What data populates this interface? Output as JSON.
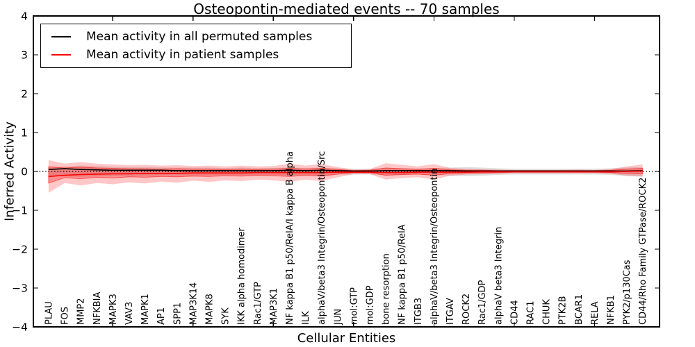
{
  "chart_data": {
    "type": "line",
    "title": "Osteopontin-mediated events -- 70 samples",
    "xlabel": "Cellular Entities",
    "ylabel": "Inferred Activity",
    "ylim": [
      -4,
      4
    ],
    "yticks": [
      -4,
      -3,
      -2,
      -1,
      0,
      1,
      2,
      3,
      4
    ],
    "xlim": [
      0.05,
      39.05
    ],
    "xticks": [
      5,
      10,
      15,
      20,
      25,
      30,
      35
    ],
    "grid": false,
    "legend_position": "upper left",
    "x": [
      1,
      2,
      3,
      4,
      5,
      6,
      7,
      8,
      9,
      10,
      11,
      12,
      13,
      14,
      15,
      16,
      17,
      18,
      19,
      20,
      21,
      22,
      23,
      24,
      25,
      26,
      27,
      28,
      29,
      30,
      31,
      32,
      33,
      34,
      35,
      36,
      37,
      38
    ],
    "categories": [
      "PLAU",
      "FOS",
      "MMP2",
      "NFKBIA",
      "MAPK3",
      "VAV3",
      "MAPK1",
      "AP1",
      "SPP1",
      "MAP3K14",
      "MAPK8",
      "SYK",
      "IKK alpha homodimer",
      "Rac1/GTP",
      "MAP3K1",
      "NF kappa B1 p50/RelA/I kappa B alpha",
      "ILK",
      "alphaV/beta3 Integrin/Osteopontin/Src",
      "JUN",
      "mol:GTP",
      "mol:GDP",
      "bone resorption",
      "NF kappa B1 p50/RelA",
      "ITGB3",
      "alphaV/beta3 Integrin/Osteopontin",
      "ITGAV",
      "ROCK2",
      "Rac1/GDP",
      "alphaV beta3 Integrin",
      "CD44",
      "RAC1",
      "CHUK",
      "PTK2B",
      "BCAR1",
      "RELA",
      "NFKB1",
      "PYK2/p130Cas",
      "CD44/Rho Family GTPase/ROCK2"
    ],
    "legend": [
      {
        "label": "Mean activity in all permuted samples",
        "color": "#000000"
      },
      {
        "label": "Mean activity in patient samples",
        "color": "#ff0000"
      }
    ],
    "zero_line": {
      "y": 0,
      "style": "dotted",
      "color": "#000000"
    },
    "series": [
      {
        "name": "Mean activity in all permuted samples",
        "color": "#000000",
        "values": [
          0.05,
          0.07,
          0.05,
          0.04,
          0.03,
          0.03,
          0.03,
          0.03,
          0.02,
          0.02,
          0.02,
          0.02,
          0.02,
          0.02,
          0.02,
          0.03,
          0.02,
          0.03,
          0.02,
          0.01,
          0.01,
          0.02,
          0.02,
          0.02,
          0.02,
          0.02,
          0.01,
          0.01,
          0.01,
          0.01,
          0.01,
          0.01,
          0.01,
          0.01,
          0.01,
          0.01,
          0.01,
          0.02
        ]
      },
      {
        "name": "Mean activity in patient samples",
        "color": "#ff0000",
        "values": [
          -0.13,
          -0.1,
          -0.08,
          -0.07,
          -0.06,
          -0.06,
          -0.05,
          -0.05,
          -0.05,
          -0.04,
          -0.04,
          -0.04,
          -0.04,
          -0.03,
          -0.03,
          -0.03,
          -0.03,
          -0.03,
          -0.02,
          -0.02,
          -0.02,
          -0.03,
          -0.03,
          -0.02,
          -0.02,
          -0.02,
          -0.02,
          -0.01,
          -0.01,
          -0.01,
          -0.01,
          -0.01,
          -0.01,
          -0.01,
          -0.01,
          -0.01,
          0.0,
          0.01
        ]
      }
    ],
    "bands": [
      {
        "name": "permuted-std-band",
        "color": "#000000",
        "opacity": 0.12,
        "top": [
          0.1,
          0.13,
          0.15,
          0.14,
          0.12,
          0.11,
          0.11,
          0.1,
          0.1,
          0.1,
          0.1,
          0.09,
          0.1,
          0.09,
          0.09,
          0.1,
          0.09,
          0.1,
          0.08,
          0.07,
          0.07,
          0.09,
          0.09,
          0.08,
          0.09,
          0.1,
          0.11,
          0.1,
          0.08,
          0.07,
          0.07,
          0.07,
          0.07,
          0.07,
          0.07,
          0.08,
          0.1,
          0.11
        ],
        "bottom": [
          -0.12,
          -0.13,
          -0.14,
          -0.13,
          -0.12,
          -0.11,
          -0.11,
          -0.1,
          -0.1,
          -0.1,
          -0.1,
          -0.09,
          -0.1,
          -0.09,
          -0.09,
          -0.1,
          -0.09,
          -0.1,
          -0.08,
          -0.08,
          -0.08,
          -0.09,
          -0.09,
          -0.08,
          -0.09,
          -0.11,
          -0.12,
          -0.11,
          -0.09,
          -0.08,
          -0.08,
          -0.08,
          -0.08,
          -0.08,
          -0.08,
          -0.09,
          -0.12,
          -0.14
        ]
      },
      {
        "name": "patient-std-band-outer",
        "color": "#ff0000",
        "opacity": 0.22,
        "top": [
          0.29,
          0.2,
          0.24,
          0.2,
          0.18,
          0.16,
          0.17,
          0.15,
          0.16,
          0.14,
          0.15,
          0.13,
          0.15,
          0.13,
          0.14,
          0.2,
          0.15,
          0.19,
          0.11,
          0.05,
          0.06,
          0.21,
          0.17,
          0.13,
          0.19,
          0.09,
          0.07,
          0.06,
          0.05,
          0.04,
          0.04,
          0.04,
          0.04,
          0.05,
          0.04,
          0.06,
          0.13,
          0.18
        ],
        "bottom": [
          -0.55,
          -0.3,
          -0.36,
          -0.3,
          -0.33,
          -0.28,
          -0.31,
          -0.26,
          -0.29,
          -0.24,
          -0.27,
          -0.23,
          -0.25,
          -0.21,
          -0.23,
          -0.27,
          -0.21,
          -0.25,
          -0.15,
          -0.07,
          -0.07,
          -0.21,
          -0.17,
          -0.15,
          -0.21,
          -0.11,
          -0.08,
          -0.07,
          -0.06,
          -0.05,
          -0.05,
          -0.05,
          -0.05,
          -0.05,
          -0.05,
          -0.06,
          -0.11,
          -0.13
        ]
      },
      {
        "name": "patient-std-band-inner",
        "color": "#ff0000",
        "opacity": 0.28,
        "edge": "#ff0000",
        "top": [
          0.12,
          0.09,
          0.11,
          0.09,
          0.08,
          0.07,
          0.07,
          0.06,
          0.07,
          0.06,
          0.06,
          0.05,
          0.06,
          0.05,
          0.06,
          0.08,
          0.06,
          0.08,
          0.05,
          0.02,
          0.03,
          0.09,
          0.07,
          0.05,
          0.08,
          0.04,
          0.03,
          0.03,
          0.02,
          0.02,
          0.02,
          0.02,
          0.02,
          0.02,
          0.02,
          0.03,
          0.06,
          0.08
        ],
        "bottom": [
          -0.3,
          -0.16,
          -0.19,
          -0.15,
          -0.17,
          -0.14,
          -0.15,
          -0.13,
          -0.14,
          -0.12,
          -0.13,
          -0.11,
          -0.12,
          -0.1,
          -0.11,
          -0.13,
          -0.1,
          -0.12,
          -0.07,
          -0.03,
          -0.03,
          -0.1,
          -0.08,
          -0.07,
          -0.1,
          -0.05,
          -0.04,
          -0.04,
          -0.03,
          -0.02,
          -0.02,
          -0.02,
          -0.02,
          -0.02,
          -0.02,
          -0.03,
          -0.05,
          -0.06
        ]
      }
    ]
  }
}
